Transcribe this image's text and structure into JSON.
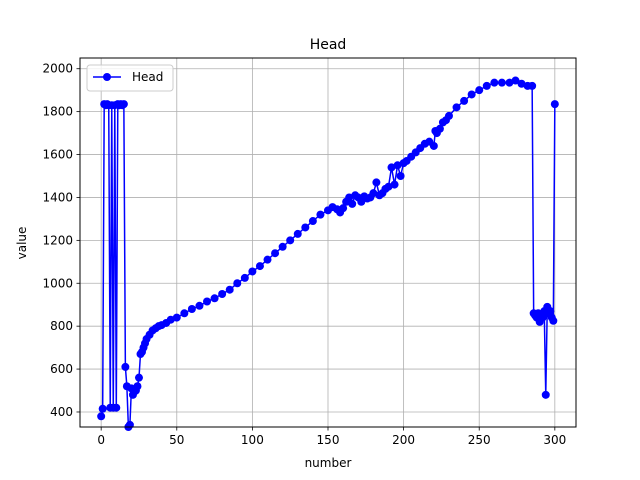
{
  "chart_data": {
    "type": "line",
    "title": "Head",
    "xlabel": "number",
    "ylabel": "value",
    "xlim": [
      -14,
      314
    ],
    "ylim": [
      330,
      2050
    ],
    "xticks": [
      0,
      50,
      100,
      150,
      200,
      250,
      300
    ],
    "yticks": [
      400,
      600,
      800,
      1000,
      1200,
      1400,
      1600,
      1800,
      2000
    ],
    "grid": true,
    "legend": {
      "position": "top-left",
      "entries": [
        "Head"
      ]
    },
    "series": [
      {
        "name": "Head",
        "color": "#0000ff",
        "marker": "circle",
        "x": [
          0,
          1,
          2,
          3,
          4,
          5,
          6,
          7,
          8,
          9,
          10,
          11,
          12,
          13,
          14,
          15,
          16,
          17,
          18,
          19,
          20,
          21,
          22,
          23,
          24,
          25,
          26,
          27,
          28,
          29,
          30,
          32,
          34,
          36,
          38,
          40,
          43,
          46,
          50,
          55,
          60,
          65,
          70,
          75,
          80,
          85,
          90,
          95,
          100,
          105,
          110,
          115,
          120,
          125,
          130,
          135,
          140,
          145,
          150,
          153,
          156,
          158,
          160,
          162,
          164,
          166,
          168,
          170,
          172,
          174,
          176,
          178,
          180,
          182,
          184,
          186,
          188,
          190,
          192,
          194,
          196,
          198,
          200,
          202,
          205,
          208,
          211,
          214,
          217,
          220,
          221,
          222,
          224,
          226,
          228,
          230,
          235,
          240,
          245,
          250,
          255,
          260,
          265,
          270,
          274,
          278,
          282,
          285,
          286,
          287,
          288,
          289,
          290,
          291,
          292,
          293,
          294,
          295,
          296,
          297,
          298,
          299,
          300
        ],
        "y": [
          380,
          415,
          1835,
          1830,
          1835,
          1830,
          420,
          1830,
          420,
          1830,
          420,
          1835,
          1830,
          1835,
          1830,
          1835,
          610,
          520,
          330,
          340,
          510,
          480,
          495,
          500,
          520,
          560,
          670,
          680,
          700,
          720,
          740,
          760,
          780,
          790,
          800,
          805,
          815,
          830,
          840,
          860,
          880,
          895,
          915,
          930,
          950,
          970,
          1000,
          1025,
          1055,
          1080,
          1110,
          1140,
          1170,
          1200,
          1230,
          1260,
          1290,
          1320,
          1340,
          1355,
          1345,
          1330,
          1350,
          1380,
          1400,
          1370,
          1410,
          1400,
          1380,
          1405,
          1395,
          1400,
          1420,
          1470,
          1410,
          1420,
          1440,
          1450,
          1540,
          1460,
          1550,
          1500,
          1560,
          1570,
          1590,
          1610,
          1630,
          1650,
          1660,
          1640,
          1710,
          1700,
          1720,
          1750,
          1760,
          1780,
          1820,
          1850,
          1880,
          1900,
          1920,
          1935,
          1935,
          1935,
          1945,
          1930,
          1920,
          1920,
          860,
          850,
          840,
          860,
          820,
          850,
          840,
          870,
          480,
          890,
          860,
          870,
          840,
          825,
          1835
        ]
      }
    ]
  }
}
